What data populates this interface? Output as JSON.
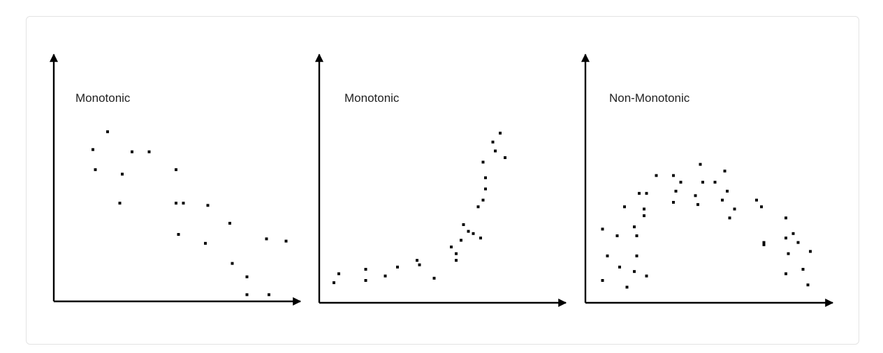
{
  "chart_data": [
    {
      "type": "scatter",
      "title": "Monotonic",
      "xlabel": "",
      "ylabel": "",
      "xlim": [
        0,
        100
      ],
      "ylim": [
        0,
        100
      ],
      "grid": false,
      "x": [
        16,
        22,
        17,
        32,
        28,
        39,
        27,
        50,
        50,
        51,
        63,
        53,
        72,
        62,
        73,
        79,
        79,
        87,
        88,
        95
      ],
      "y": [
        68,
        76,
        59,
        67,
        57,
        67,
        44,
        44,
        59,
        30,
        43,
        44,
        35,
        26,
        17,
        11,
        3,
        28,
        3,
        27
      ]
    },
    {
      "type": "scatter",
      "title": "Monotonic",
      "xlabel": "",
      "ylabel": "",
      "xlim": [
        0,
        100
      ],
      "ylim": [
        0,
        100
      ],
      "grid": false,
      "x": [
        6,
        8,
        19,
        19,
        27,
        32,
        40,
        41,
        47,
        54,
        56,
        56,
        58,
        63,
        59,
        61,
        65,
        66,
        67,
        68,
        67,
        68,
        72,
        71,
        74,
        76
      ],
      "y": [
        9,
        13,
        10,
        15,
        12,
        16,
        19,
        17,
        11,
        25,
        22,
        19,
        28,
        31,
        35,
        32,
        43,
        29,
        46,
        56,
        63,
        51,
        68,
        72,
        76,
        65
      ]
    },
    {
      "type": "scatter",
      "title": "Non-Monotonic",
      "xlabel": "",
      "ylabel": "",
      "xlim": [
        0,
        100
      ],
      "ylim": [
        0,
        100
      ],
      "grid": false,
      "x": [
        7,
        7,
        9,
        13,
        14,
        16,
        17,
        20,
        20,
        21,
        21,
        22,
        24,
        25,
        25,
        24,
        29,
        36,
        37,
        36,
        39,
        45,
        47,
        46,
        48,
        53,
        56,
        57,
        59,
        58,
        61,
        70,
        72,
        73,
        73,
        82,
        82,
        82,
        83,
        85,
        87,
        89,
        91,
        92
      ],
      "y": [
        10,
        33,
        21,
        30,
        16,
        43,
        7,
        14,
        34,
        21,
        30,
        49,
        42,
        49,
        12,
        39,
        57,
        57,
        50,
        45,
        54,
        48,
        62,
        44,
        54,
        54,
        46,
        59,
        38,
        50,
        42,
        46,
        43,
        26,
        27,
        13,
        38,
        29,
        22,
        31,
        27,
        15,
        8,
        23
      ]
    }
  ]
}
